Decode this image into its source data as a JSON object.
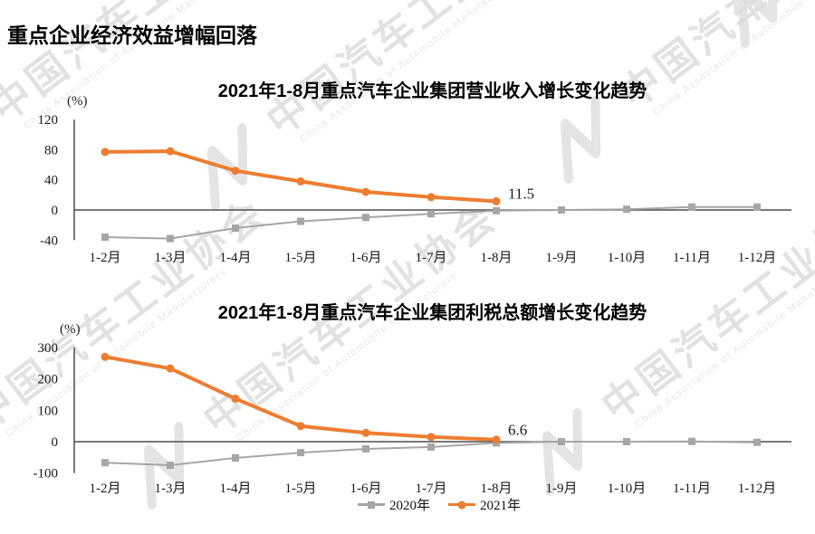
{
  "page": {
    "title": "重点企业经济效益增幅回落"
  },
  "watermark": {
    "logo": "caam-swoosh",
    "text": "中国汽车工业协会",
    "subtext": "China Association of Automobile Manufacturers"
  },
  "chart_data": [
    {
      "type": "line",
      "title": "2021年1-8月重点汽车企业集团营业收入增长变化趋势",
      "unit_label": "(%)",
      "xlabel": "",
      "ylabel": "(%)",
      "ylim": [
        -40,
        120
      ],
      "yticks": [
        120,
        80,
        40,
        0,
        -40
      ],
      "grid": false,
      "legend_position": "bottom",
      "categories": [
        "1-2月",
        "1-3月",
        "1-4月",
        "1-5月",
        "1-6月",
        "1-7月",
        "1-8月",
        "1-9月",
        "1-10月",
        "1-11月",
        "1-12月"
      ],
      "series": [
        {
          "name": "2020年",
          "color": "#A6A6A6",
          "marker": "square",
          "values": [
            -36,
            -38,
            -24,
            -15,
            -10,
            -5,
            -1,
            0,
            1,
            4,
            4
          ]
        },
        {
          "name": "2021年",
          "color": "#ED7D31",
          "marker": "circle",
          "values": [
            77,
            78,
            52,
            38,
            24,
            17,
            11.5
          ],
          "end_label": "11.5"
        }
      ]
    },
    {
      "type": "line",
      "title": "2021年1-8月重点汽车企业集团利税总额增长变化趋势",
      "unit_label": "(%)",
      "xlabel": "",
      "ylabel": "(%)",
      "ylim": [
        -100,
        300
      ],
      "yticks": [
        300,
        200,
        100,
        0,
        -100
      ],
      "grid": false,
      "legend_position": "bottom",
      "categories": [
        "1-2月",
        "1-3月",
        "1-4月",
        "1-5月",
        "1-6月",
        "1-7月",
        "1-8月",
        "1-9月",
        "1-10月",
        "1-11月",
        "1-12月"
      ],
      "series": [
        {
          "name": "2020年",
          "color": "#A6A6A6",
          "marker": "square",
          "values": [
            -67,
            -75,
            -52,
            -35,
            -23,
            -17,
            -4,
            0,
            0,
            1,
            -2
          ]
        },
        {
          "name": "2021年",
          "color": "#ED7D31",
          "marker": "circle",
          "values": [
            270,
            233,
            137,
            50,
            28,
            15,
            6.6
          ],
          "end_label": "6.6"
        }
      ]
    }
  ],
  "axis_color": "#4D4D4D"
}
